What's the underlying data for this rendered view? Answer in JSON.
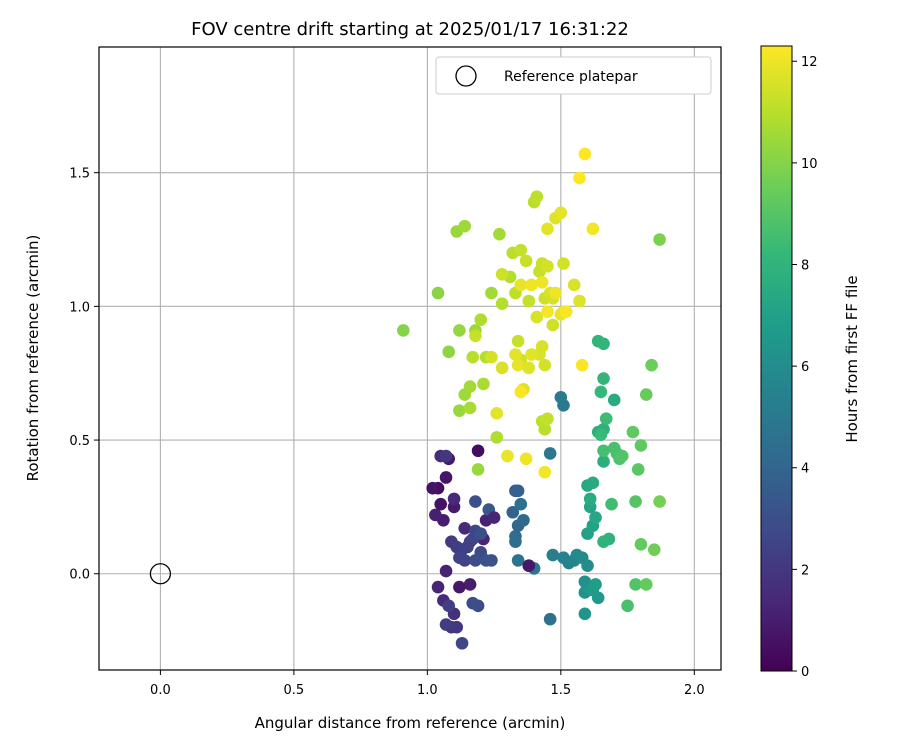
{
  "chart_data": {
    "type": "scatter",
    "title": "FOV centre drift starting at 2025/01/17 16:31:22",
    "xlabel": "Angular distance from reference (arcmin)",
    "ylabel": "Rotation from reference (arcmin)",
    "xlim": [
      -0.23,
      2.1
    ],
    "ylim": [
      -0.36,
      1.97
    ],
    "xticks": [
      0.0,
      0.5,
      1.0,
      1.5,
      2.0
    ],
    "xtick_labels": [
      "0.0",
      "0.5",
      "1.0",
      "1.5",
      "2.0"
    ],
    "yticks": [
      0.0,
      0.5,
      1.0,
      1.5
    ],
    "ytick_labels": [
      "0.0",
      "0.5",
      "1.0",
      "1.5"
    ],
    "grid": true,
    "legend": {
      "placement": "top-right",
      "entries": [
        "Reference platepar"
      ]
    },
    "reference_point": {
      "label": "Reference platepar",
      "x": 0.0,
      "y": 0.0
    },
    "colorbar": {
      "label": "Hours from first FF file",
      "min": 0,
      "max": 12.3,
      "ticks": [
        0,
        2,
        4,
        6,
        8,
        10,
        12
      ],
      "tick_labels": [
        "0",
        "2",
        "4",
        "6",
        "8",
        "10",
        "12"
      ],
      "colormap": "viridis"
    },
    "points": [
      [
        1.04,
        0.32,
        0.5
      ],
      [
        1.05,
        0.26,
        0.6
      ],
      [
        1.07,
        0.36,
        0.7
      ],
      [
        1.08,
        0.43,
        0.8
      ],
      [
        1.19,
        0.46,
        0.4
      ],
      [
        1.02,
        0.32,
        0.6
      ],
      [
        1.1,
        0.25,
        0.9
      ],
      [
        1.06,
        0.2,
        1.0
      ],
      [
        1.03,
        0.22,
        1.1
      ],
      [
        1.07,
        0.01,
        1.2
      ],
      [
        1.16,
        -0.04,
        1.0
      ],
      [
        1.22,
        0.2,
        1.2
      ],
      [
        1.21,
        0.13,
        1.3
      ],
      [
        1.14,
        0.17,
        1.4
      ],
      [
        1.1,
        0.28,
        1.5
      ],
      [
        1.05,
        0.44,
        1.6
      ],
      [
        1.12,
        -0.05,
        0.8
      ],
      [
        1.04,
        -0.05,
        1.3
      ],
      [
        1.06,
        -0.1,
        1.5
      ],
      [
        1.1,
        -0.15,
        1.7
      ],
      [
        1.09,
        -0.2,
        1.9
      ],
      [
        1.11,
        -0.2,
        2.0
      ],
      [
        1.07,
        0.44,
        2.0
      ],
      [
        1.09,
        0.12,
        2.1
      ],
      [
        1.11,
        0.1,
        2.2
      ],
      [
        1.13,
        0.09,
        2.3
      ],
      [
        1.16,
        0.12,
        2.4
      ],
      [
        1.14,
        0.05,
        2.5
      ],
      [
        1.17,
        0.13,
        2.6
      ],
      [
        1.18,
        0.16,
        2.7
      ],
      [
        1.2,
        0.08,
        2.8
      ],
      [
        1.18,
        0.05,
        2.9
      ],
      [
        1.2,
        0.15,
        3.0
      ],
      [
        1.22,
        0.05,
        3.1
      ],
      [
        1.24,
        0.05,
        3.2
      ],
      [
        1.18,
        0.27,
        3.0
      ],
      [
        1.15,
        0.1,
        2.4
      ],
      [
        1.13,
        -0.26,
        2.6
      ],
      [
        1.19,
        -0.12,
        2.8
      ],
      [
        1.17,
        -0.11,
        2.9
      ],
      [
        1.07,
        -0.19,
        2.2
      ],
      [
        1.08,
        -0.12,
        2.3
      ],
      [
        1.23,
        0.24,
        3.4
      ],
      [
        1.12,
        0.06,
        2.5
      ],
      [
        1.25,
        0.21,
        1.3
      ],
      [
        1.33,
        0.31,
        3.6
      ],
      [
        1.34,
        0.31,
        3.8
      ],
      [
        1.32,
        0.23,
        3.9
      ],
      [
        1.34,
        0.18,
        4.1
      ],
      [
        1.36,
        0.2,
        4.2
      ],
      [
        1.33,
        0.14,
        4.3
      ],
      [
        1.33,
        0.12,
        4.4
      ],
      [
        1.35,
        0.26,
        4.5
      ],
      [
        1.34,
        0.05,
        4.6
      ],
      [
        1.38,
        0.03,
        4.7
      ],
      [
        1.4,
        0.02,
        4.8
      ],
      [
        1.38,
        0.03,
        0.8
      ],
      [
        1.46,
        -0.17,
        4.5
      ],
      [
        1.46,
        0.45,
        4.9
      ],
      [
        1.51,
        0.63,
        5.0
      ],
      [
        1.5,
        0.66,
        5.1
      ],
      [
        1.47,
        0.07,
        5.3
      ],
      [
        1.51,
        0.06,
        5.4
      ],
      [
        1.53,
        0.04,
        5.5
      ],
      [
        1.55,
        0.05,
        5.6
      ],
      [
        1.56,
        0.07,
        5.8
      ],
      [
        1.58,
        0.06,
        5.9
      ],
      [
        1.6,
        0.03,
        6.0
      ],
      [
        1.59,
        -0.03,
        6.2
      ],
      [
        1.59,
        -0.07,
        6.3
      ],
      [
        1.59,
        -0.15,
        6.4
      ],
      [
        1.61,
        -0.06,
        6.5
      ],
      [
        1.64,
        -0.09,
        6.6
      ],
      [
        1.62,
        -0.06,
        6.7
      ],
      [
        1.63,
        -0.04,
        6.8
      ],
      [
        1.6,
        0.15,
        7.0
      ],
      [
        1.62,
        0.18,
        7.1
      ],
      [
        1.61,
        0.25,
        7.2
      ],
      [
        1.63,
        0.21,
        7.3
      ],
      [
        1.6,
        0.33,
        7.4
      ],
      [
        1.62,
        0.34,
        7.5
      ],
      [
        1.61,
        0.28,
        7.6
      ],
      [
        1.64,
        0.53,
        7.7
      ],
      [
        1.66,
        0.54,
        7.8
      ],
      [
        1.7,
        0.65,
        7.5
      ],
      [
        1.66,
        0.42,
        7.7
      ],
      [
        1.68,
        0.13,
        7.9
      ],
      [
        1.66,
        0.12,
        8.0
      ],
      [
        1.64,
        0.87,
        8.0
      ],
      [
        1.66,
        0.86,
        8.1
      ],
      [
        1.65,
        0.68,
        8.2
      ],
      [
        1.65,
        0.52,
        8.3
      ],
      [
        1.67,
        0.58,
        8.4
      ],
      [
        1.69,
        0.26,
        8.5
      ],
      [
        1.71,
        0.45,
        8.6
      ],
      [
        1.7,
        0.47,
        8.7
      ],
      [
        1.72,
        0.43,
        8.8
      ],
      [
        1.73,
        0.44,
        8.9
      ],
      [
        1.66,
        0.46,
        8.6
      ],
      [
        1.75,
        -0.12,
        8.7
      ],
      [
        1.78,
        -0.04,
        8.9
      ],
      [
        1.78,
        0.27,
        9.0
      ],
      [
        1.79,
        0.39,
        9.1
      ],
      [
        1.8,
        0.48,
        9.2
      ],
      [
        1.77,
        0.53,
        9.2
      ],
      [
        1.8,
        0.11,
        9.3
      ],
      [
        1.82,
        -0.04,
        9.3
      ],
      [
        1.82,
        0.67,
        9.4
      ],
      [
        1.84,
        0.78,
        9.5
      ],
      [
        1.85,
        0.09,
        9.6
      ],
      [
        1.87,
        0.27,
        9.7
      ],
      [
        1.87,
        1.25,
        9.8
      ],
      [
        1.66,
        0.73,
        8.1
      ],
      [
        0.91,
        0.91,
        10.0
      ],
      [
        1.04,
        1.05,
        10.1
      ],
      [
        1.08,
        0.83,
        10.2
      ],
      [
        1.12,
        0.91,
        10.3
      ],
      [
        1.12,
        0.61,
        10.4
      ],
      [
        1.14,
        0.67,
        10.5
      ],
      [
        1.16,
        0.7,
        10.6
      ],
      [
        1.16,
        0.62,
        10.7
      ],
      [
        1.18,
        0.91,
        10.5
      ],
      [
        1.19,
        0.39,
        10.4
      ],
      [
        1.2,
        0.95,
        10.8
      ],
      [
        1.22,
        0.81,
        10.9
      ],
      [
        1.21,
        0.71,
        10.7
      ],
      [
        1.17,
        0.81,
        11.0
      ],
      [
        1.24,
        1.05,
        10.6
      ],
      [
        1.26,
        0.51,
        10.8
      ],
      [
        1.28,
        1.01,
        10.9
      ],
      [
        1.27,
        1.27,
        10.6
      ],
      [
        1.11,
        1.28,
        10.4
      ],
      [
        1.14,
        1.3,
        10.5
      ],
      [
        1.31,
        1.11,
        10.9
      ],
      [
        1.32,
        1.2,
        11.0
      ],
      [
        1.33,
        1.05,
        11.1
      ],
      [
        1.35,
        1.21,
        11.2
      ],
      [
        1.34,
        0.87,
        11.3
      ],
      [
        1.35,
        0.8,
        11.4
      ],
      [
        1.37,
        1.17,
        11.3
      ],
      [
        1.38,
        1.02,
        11.2
      ],
      [
        1.4,
        1.39,
        11.0
      ],
      [
        1.41,
        1.41,
        11.1
      ],
      [
        1.42,
        1.13,
        11.2
      ],
      [
        1.43,
        1.16,
        11.3
      ],
      [
        1.44,
        1.03,
        11.4
      ],
      [
        1.45,
        1.15,
        11.5
      ],
      [
        1.46,
        1.05,
        11.6
      ],
      [
        1.48,
        1.33,
        11.7
      ],
      [
        1.47,
        0.93,
        11.4
      ],
      [
        1.47,
        1.03,
        11.5
      ],
      [
        1.44,
        0.78,
        11.5
      ],
      [
        1.41,
        0.96,
        11.6
      ],
      [
        1.43,
        0.85,
        11.6
      ],
      [
        1.42,
        0.82,
        11.6
      ],
      [
        1.36,
        0.69,
        11.7
      ],
      [
        1.33,
        0.82,
        11.8
      ],
      [
        1.34,
        0.78,
        11.9
      ],
      [
        1.39,
        0.82,
        11.8
      ],
      [
        1.38,
        0.77,
        11.7
      ],
      [
        1.3,
        0.44,
        11.9
      ],
      [
        1.37,
        0.43,
        12.0
      ],
      [
        1.44,
        0.38,
        12.1
      ],
      [
        1.26,
        0.6,
        11.8
      ],
      [
        1.35,
        1.08,
        11.9
      ],
      [
        1.39,
        1.08,
        12.0
      ],
      [
        1.43,
        1.09,
        12.0
      ],
      [
        1.45,
        0.98,
        12.1
      ],
      [
        1.48,
        1.05,
        12.0
      ],
      [
        1.5,
        1.35,
        11.8
      ],
      [
        1.51,
        1.16,
        11.5
      ],
      [
        1.5,
        0.97,
        11.9
      ],
      [
        1.51,
        0.98,
        11.9
      ],
      [
        1.52,
        0.98,
        12.0
      ],
      [
        1.55,
        1.08,
        11.6
      ],
      [
        1.57,
        1.02,
        11.7
      ],
      [
        1.58,
        0.78,
        12.2
      ],
      [
        1.57,
        1.48,
        12.3
      ],
      [
        1.59,
        1.57,
        12.3
      ],
      [
        1.62,
        1.29,
        12.1
      ],
      [
        1.52,
        0.98,
        12.2
      ],
      [
        1.45,
        1.29,
        11.8
      ],
      [
        1.28,
        0.77,
        11.6
      ],
      [
        1.24,
        0.81,
        11.5
      ],
      [
        1.28,
        1.12,
        11.4
      ],
      [
        1.18,
        0.89,
        11.3
      ],
      [
        1.35,
        0.68,
        12.2
      ],
      [
        1.44,
        0.54,
        11.0
      ],
      [
        1.43,
        0.57,
        11.1
      ],
      [
        1.45,
        0.58,
        11.2
      ]
    ]
  }
}
